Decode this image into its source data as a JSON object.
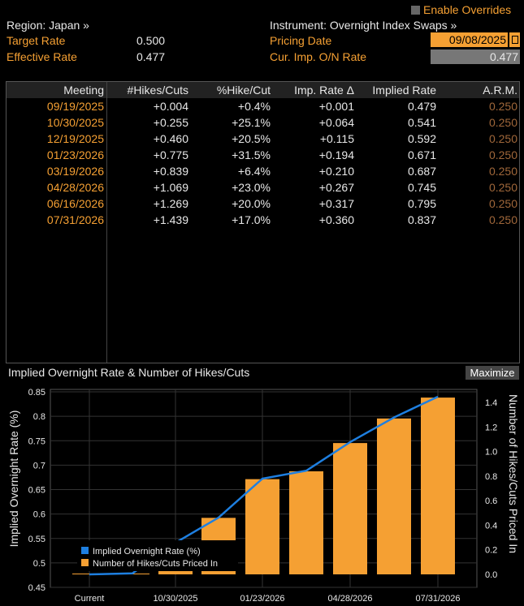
{
  "header": {
    "region_label": "Region: Japan »",
    "instrument_label": "Instrument: Overnight Index Swaps »",
    "enable_overrides": "Enable Overrides",
    "target_rate_label": "Target Rate",
    "target_rate_value": "0.500",
    "effective_rate_label": "Effective Rate",
    "effective_rate_value": "0.477",
    "pricing_date_label": "Pricing Date",
    "pricing_date_value": "09/08/2025",
    "cur_imp_label": "Cur. Imp. O/N Rate",
    "cur_imp_value": "0.477"
  },
  "table": {
    "columns": [
      "Meeting",
      "#Hikes/Cuts",
      "%Hike/Cut",
      "Imp. Rate Δ",
      "Implied Rate",
      "A.R.M."
    ],
    "rows": [
      [
        "09/19/2025",
        "+0.004",
        "+0.4%",
        "+0.001",
        "0.479",
        "0.250"
      ],
      [
        "10/30/2025",
        "+0.255",
        "+25.1%",
        "+0.064",
        "0.541",
        "0.250"
      ],
      [
        "12/19/2025",
        "+0.460",
        "+20.5%",
        "+0.115",
        "0.592",
        "0.250"
      ],
      [
        "01/23/2026",
        "+0.775",
        "+31.5%",
        "+0.194",
        "0.671",
        "0.250"
      ],
      [
        "03/19/2026",
        "+0.839",
        "+6.4%",
        "+0.210",
        "0.687",
        "0.250"
      ],
      [
        "04/28/2026",
        "+1.069",
        "+23.0%",
        "+0.267",
        "0.745",
        "0.250"
      ],
      [
        "06/16/2026",
        "+1.269",
        "+20.0%",
        "+0.317",
        "0.795",
        "0.250"
      ],
      [
        "07/31/2026",
        "+1.439",
        "+17.0%",
        "+0.360",
        "0.837",
        "0.250"
      ]
    ]
  },
  "chart": {
    "title": "Implied Overnight Rate & Number of Hikes/Cuts",
    "maximize_label": "Maximize",
    "y_left_label": "Implied Overnight Rate (%)",
    "y_right_label": "Number of Hikes/Cuts Priced In",
    "legend_line": "Implied Overnight Rate (%)",
    "legend_bar": "Number of Hikes/Cuts Priced In",
    "colors": {
      "line": "#1e7fe0",
      "bar": "#f5a033",
      "background": "#000000",
      "grid": "#333333"
    }
  },
  "chart_data": {
    "type": "bar",
    "x_tick_labels": [
      "Current",
      "10/30/2025",
      "01/23/2026",
      "04/28/2026",
      "07/31/2026"
    ],
    "categories": [
      "Current",
      "09/19/2025",
      "10/30/2025",
      "12/19/2025",
      "01/23/2026",
      "03/19/2026",
      "04/28/2026",
      "06/16/2026",
      "07/31/2026"
    ],
    "series": [
      {
        "name": "Number of Hikes/Cuts Priced In",
        "type": "bar",
        "axis": "right",
        "values": [
          0,
          0.004,
          0.255,
          0.46,
          0.775,
          0.839,
          1.069,
          1.269,
          1.439
        ]
      },
      {
        "name": "Implied Overnight Rate (%)",
        "type": "line",
        "axis": "left",
        "values": [
          0.477,
          0.479,
          0.541,
          0.592,
          0.671,
          0.687,
          0.745,
          0.795,
          0.837
        ]
      }
    ],
    "y_left": {
      "min": 0.45,
      "max": 0.85,
      "ticks": [
        0.45,
        0.5,
        0.55,
        0.6,
        0.65,
        0.7,
        0.75,
        0.8,
        0.85
      ]
    },
    "y_right": {
      "min": 0,
      "max": 1.4,
      "ticks": [
        0.0,
        0.2,
        0.4,
        0.6,
        0.8,
        1.0,
        1.2,
        1.4
      ]
    },
    "grid": true,
    "legend_position": "bottom-left"
  }
}
